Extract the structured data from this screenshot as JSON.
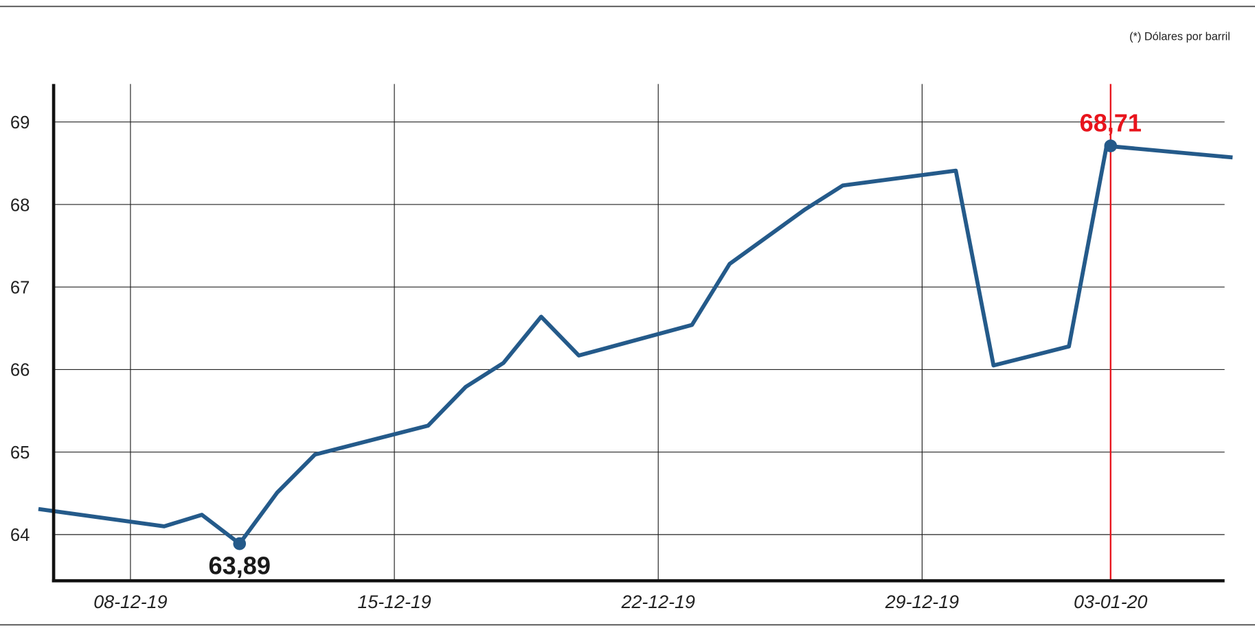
{
  "chart_data": {
    "type": "line",
    "title": "",
    "note": "(*) Dólares por barril",
    "xlabel": "",
    "ylabel": "",
    "ylim": [
      63.44,
      69.46
    ],
    "yticks": [
      "64",
      "65",
      "66",
      "67",
      "68",
      "69"
    ],
    "xticks": [
      "08-12-19",
      "15-12-19",
      "22-12-19",
      "29-12-19",
      "03-01-20"
    ],
    "highlight_tick": "03-01-20",
    "grid": true,
    "colors": {
      "line": "#245a8a",
      "highlight": "#e8141c",
      "grid": "#222222",
      "min_label": "#1a1a1a"
    },
    "series": [
      {
        "x": [
          "06-12-19",
          "09-12-19",
          "10-12-19",
          "11-12-19",
          "12-12-19",
          "13-12-19",
          "16-12-19",
          "17-12-19",
          "18-12-19",
          "19-12-19",
          "20-12-19",
          "23-12-19",
          "24-12-19",
          "26-12-19",
          "27-12-19",
          "30-12-19",
          "31-12-19",
          "02-01-20",
          "03-01-20",
          "06-01-20"
        ],
        "values": [
          64.31,
          64.1,
          64.24,
          63.89,
          64.51,
          64.97,
          65.32,
          65.79,
          66.08,
          66.64,
          66.17,
          66.54,
          67.28,
          67.94,
          68.23,
          68.41,
          66.05,
          66.28,
          68.71,
          68.57
        ]
      }
    ],
    "annotations": [
      {
        "x": "11-12-19",
        "value": 63.89,
        "label": "63,89",
        "color": "#1a1a1a"
      },
      {
        "x": "03-01-20",
        "value": 68.71,
        "label": "68,71",
        "color": "#e8141c"
      }
    ]
  }
}
